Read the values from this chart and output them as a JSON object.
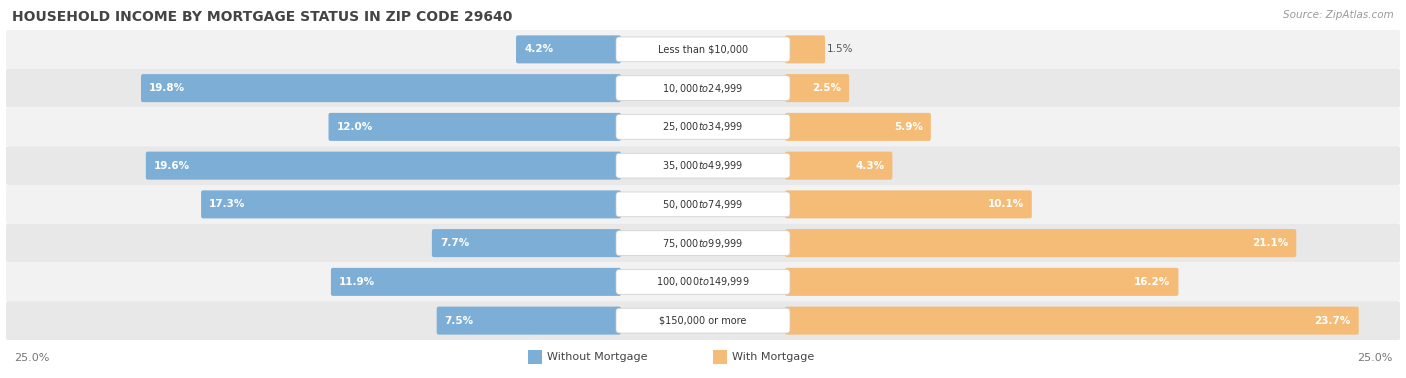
{
  "title": "HOUSEHOLD INCOME BY MORTGAGE STATUS IN ZIP CODE 29640",
  "source": "Source: ZipAtlas.com",
  "categories": [
    "Less than $10,000",
    "$10,000 to $24,999",
    "$25,000 to $34,999",
    "$35,000 to $49,999",
    "$50,000 to $74,999",
    "$75,000 to $99,999",
    "$100,000 to $149,999",
    "$150,000 or more"
  ],
  "without_mortgage": [
    4.2,
    19.8,
    12.0,
    19.6,
    17.3,
    7.7,
    11.9,
    7.5
  ],
  "with_mortgage": [
    1.5,
    2.5,
    5.9,
    4.3,
    10.1,
    21.1,
    16.2,
    23.7
  ],
  "color_without": "#7DAED6",
  "color_with": "#F5BC78",
  "max_val": 25.0,
  "axis_label_left": "25.0%",
  "axis_label_right": "25.0%",
  "legend_without": "Without Mortgage",
  "legend_with": "With Mortgage",
  "title_color": "#444444",
  "row_colors": [
    "#F2F2F2",
    "#E8E8E8"
  ]
}
